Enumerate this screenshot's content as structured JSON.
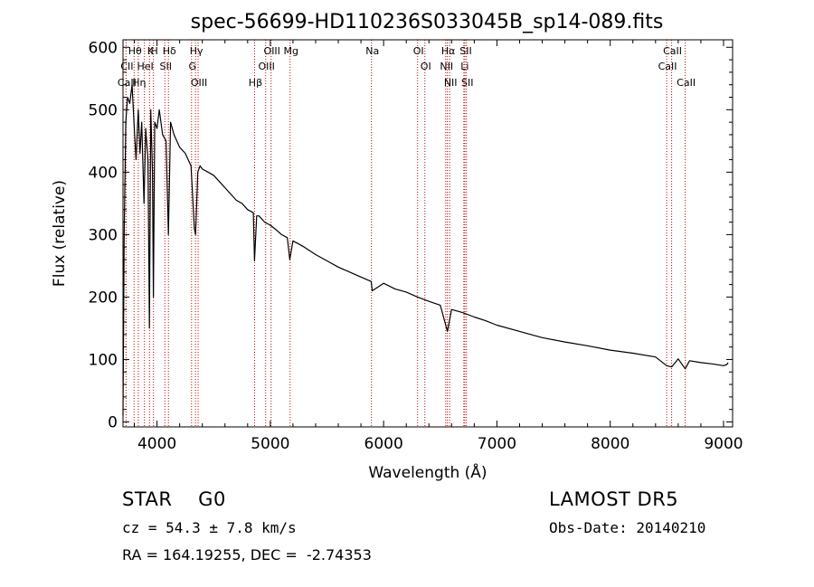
{
  "chart_data": {
    "type": "line",
    "title": "spec-56699-HD110236S033045B_sp14-089.fits",
    "xlabel": "Wavelength (Å)",
    "ylabel": "Flux (relative)",
    "xlim": [
      3700,
      9080
    ],
    "ylim": [
      -8,
      612
    ],
    "xticks": [
      4000,
      5000,
      6000,
      7000,
      8000,
      9000
    ],
    "yticks": [
      0,
      100,
      200,
      300,
      400,
      500,
      600
    ],
    "grid": false,
    "series": [
      {
        "x": [
          3700,
          3710,
          3725,
          3740,
          3760,
          3780,
          3800,
          3815,
          3835,
          3850,
          3865,
          3885,
          3900,
          3920,
          3933,
          3945,
          3960,
          3968,
          3980,
          4000,
          4020,
          4050,
          4080,
          4101,
          4120,
          4150,
          4200,
          4250,
          4300,
          4330,
          4340,
          4360,
          4380,
          4400,
          4450,
          4500,
          4550,
          4600,
          4650,
          4700,
          4750,
          4800,
          4850,
          4861,
          4880,
          4900,
          4950,
          5000,
          5050,
          5100,
          5150,
          5172,
          5200,
          5250,
          5300,
          5400,
          5500,
          5600,
          5700,
          5800,
          5890,
          5900,
          6000,
          6100,
          6200,
          6300,
          6400,
          6500,
          6563,
          6600,
          6700,
          6800,
          6900,
          7000,
          7200,
          7400,
          7600,
          7800,
          8000,
          8200,
          8400,
          8498,
          8542,
          8600,
          8662,
          8700,
          8800,
          8900,
          9000,
          9030,
          9040
        ],
        "y": [
          10,
          300,
          480,
          520,
          510,
          540,
          470,
          420,
          500,
          430,
          480,
          350,
          470,
          420,
          150,
          500,
          400,
          200,
          480,
          470,
          500,
          460,
          450,
          300,
          480,
          460,
          440,
          430,
          410,
          310,
          300,
          400,
          410,
          405,
          400,
          395,
          385,
          375,
          365,
          355,
          350,
          340,
          335,
          258,
          330,
          330,
          320,
          315,
          308,
          300,
          295,
          260,
          290,
          285,
          280,
          268,
          258,
          248,
          240,
          232,
          225,
          210,
          222,
          213,
          208,
          200,
          193,
          187,
          145,
          180,
          175,
          168,
          162,
          155,
          145,
          135,
          128,
          122,
          115,
          110,
          104,
          90,
          88,
          101,
          85,
          98,
          95,
          93,
          90,
          92,
          95
        ]
      }
    ],
    "line_markers": [
      {
        "label": "Hθ",
        "wave": 3798
      },
      {
        "label": "CII",
        "wave": 3727
      },
      {
        "label": "CaII",
        "wave": 3727
      },
      {
        "label": "K",
        "wave": 3934
      },
      {
        "label": "HeI",
        "wave": 3889
      },
      {
        "label": "Hη",
        "wave": 3835
      },
      {
        "label": "H",
        "wave": 3969
      },
      {
        "label": "Hδ",
        "wave": 4101
      },
      {
        "label": "SII",
        "wave": 4069
      },
      {
        "label": "OIII",
        "wave": 4363
      },
      {
        "label": "Hγ",
        "wave": 4340
      },
      {
        "label": "G",
        "wave": 4305
      },
      {
        "label": "OIII",
        "wave": 5007
      },
      {
        "label": "OIII",
        "wave": 4959
      },
      {
        "label": "Hβ",
        "wave": 4861
      },
      {
        "label": "Mg",
        "wave": 5175
      },
      {
        "label": "Na",
        "wave": 5893
      },
      {
        "label": "OI",
        "wave": 6300
      },
      {
        "label": "OI",
        "wave": 6364
      },
      {
        "label": "Hα",
        "wave": 6563
      },
      {
        "label": "NII",
        "wave": 6548
      },
      {
        "label": "NII",
        "wave": 6583
      },
      {
        "label": "SII",
        "wave": 6717
      },
      {
        "label": "Li",
        "wave": 6708
      },
      {
        "label": "SII",
        "wave": 6731
      },
      {
        "label": "CaII",
        "wave": 8542
      },
      {
        "label": "CaII",
        "wave": 8498
      },
      {
        "label": "CaII",
        "wave": 8662
      }
    ]
  },
  "info": {
    "class_text": "STAR    G0",
    "cz_text": "cz = 54.3 ± 7.8 km/s",
    "radec_text": "RA = 164.19255, DEC =  -2.74353",
    "survey_text": "LAMOST DR5",
    "obs_text": "Obs-Date: 20140210"
  },
  "colors": {
    "spectrum": "#000000",
    "line_marker": "#cc0000",
    "axis": "#000000"
  }
}
